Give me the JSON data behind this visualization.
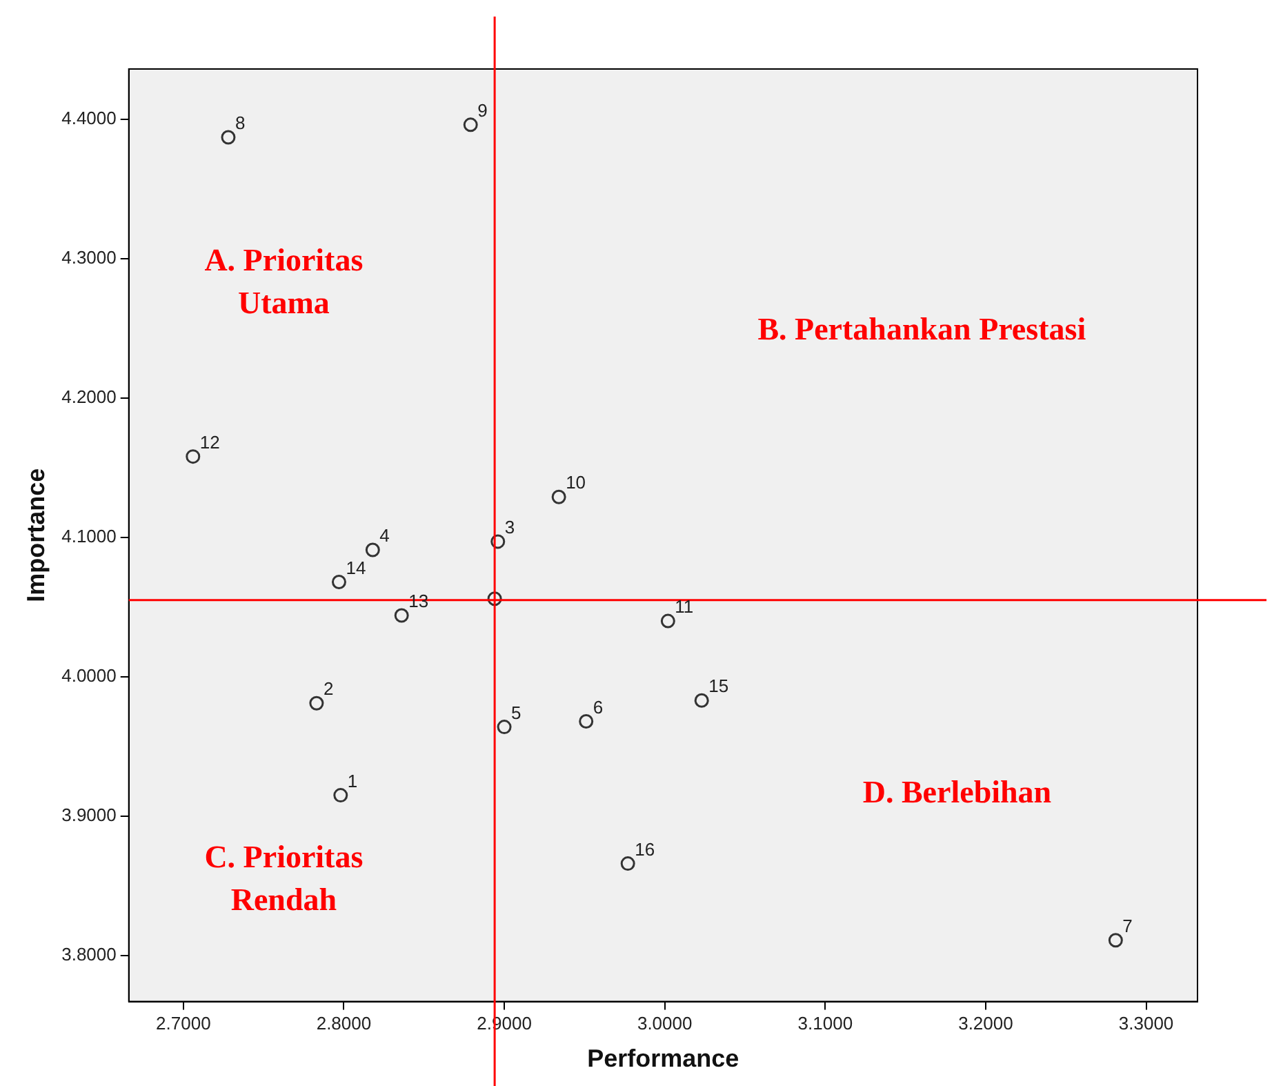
{
  "chart_data": {
    "type": "scatter",
    "xlabel": "Performance",
    "ylabel": "Importance",
    "x": [
      2.798,
      2.783,
      2.896,
      2.818,
      2.9,
      2.951,
      3.281,
      2.728,
      2.879,
      2.934,
      3.002,
      2.706,
      2.836,
      2.797,
      3.023,
      2.977,
      2.894
    ],
    "series": [
      {
        "color": "#333333",
        "values": [
          3.915,
          3.981,
          4.097,
          4.091,
          3.964,
          3.968,
          3.811,
          4.387,
          4.396,
          4.129,
          4.04,
          4.158,
          4.044,
          4.068,
          3.983,
          3.866,
          4.056
        ]
      }
    ],
    "xlim": [
      2.666,
      3.332
    ],
    "ylim": [
      3.767,
      4.436
    ],
    "xticks": [
      {
        "value": 2.7,
        "label": "2.7000"
      },
      {
        "value": 2.8,
        "label": "2.8000"
      },
      {
        "value": 2.9,
        "label": "2.9000"
      },
      {
        "value": 3.0,
        "label": "3.0000"
      },
      {
        "value": 3.1,
        "label": "3.1000"
      },
      {
        "value": 3.2,
        "label": "3.2000"
      },
      {
        "value": 3.3,
        "label": "3.3000"
      }
    ],
    "yticks": [
      {
        "value": 3.8,
        "label": "3.8000"
      },
      {
        "value": 3.9,
        "label": "3.9000"
      },
      {
        "value": 4.0,
        "label": "4.0000"
      },
      {
        "value": 4.1,
        "label": "4.1000"
      },
      {
        "value": 4.2,
        "label": "4.2000"
      },
      {
        "value": 4.3,
        "label": "4.3000"
      },
      {
        "value": 4.4,
        "label": "4.4000"
      }
    ],
    "ref_lines": [
      {
        "axis": "x",
        "value": 2.894,
        "color": "#ff0000"
      },
      {
        "axis": "y",
        "value": 4.055,
        "color": "#ff0000"
      }
    ],
    "annotations": [
      "A. Prioritas Utama",
      "B. Pertahankan Prestasi",
      "C. Prioritas Rendah",
      "D. Berlebihan",
      {
        "text": "1",
        "x": 2.798,
        "y": 3.915
      },
      {
        "text": "2",
        "x": 2.783,
        "y": 3.981
      },
      {
        "text": "3",
        "x": 2.896,
        "y": 4.097
      },
      {
        "text": "4",
        "x": 2.818,
        "y": 4.091
      },
      {
        "text": "5",
        "x": 2.9,
        "y": 3.964
      },
      {
        "text": "6",
        "x": 2.951,
        "y": 3.968
      },
      {
        "text": "7",
        "x": 3.281,
        "y": 3.811
      },
      {
        "text": "8",
        "x": 2.728,
        "y": 4.387
      },
      {
        "text": "9",
        "x": 2.879,
        "y": 4.396
      },
      {
        "text": "10",
        "x": 2.934,
        "y": 4.129
      },
      {
        "text": "11",
        "x": 3.002,
        "y": 4.04
      },
      {
        "text": "12",
        "x": 2.706,
        "y": 4.158
      },
      {
        "text": "13",
        "x": 2.836,
        "y": 4.044
      },
      {
        "text": "14",
        "x": 2.797,
        "y": 4.068
      },
      {
        "text": "15",
        "x": 3.023,
        "y": 3.983
      },
      {
        "text": "16",
        "x": 2.977,
        "y": 3.866
      }
    ],
    "grid": false,
    "legend": false,
    "marker": "circle"
  }
}
